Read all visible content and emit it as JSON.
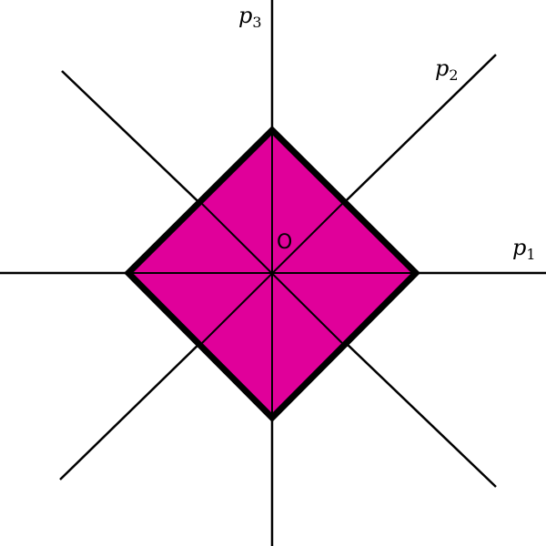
{
  "diagram": {
    "fill_color": "#e0009a",
    "origin_label": "O",
    "axes": [
      {
        "var": "p",
        "sub": "1"
      },
      {
        "var": "p",
        "sub": "2"
      },
      {
        "var": "p",
        "sub": "3"
      }
    ]
  }
}
